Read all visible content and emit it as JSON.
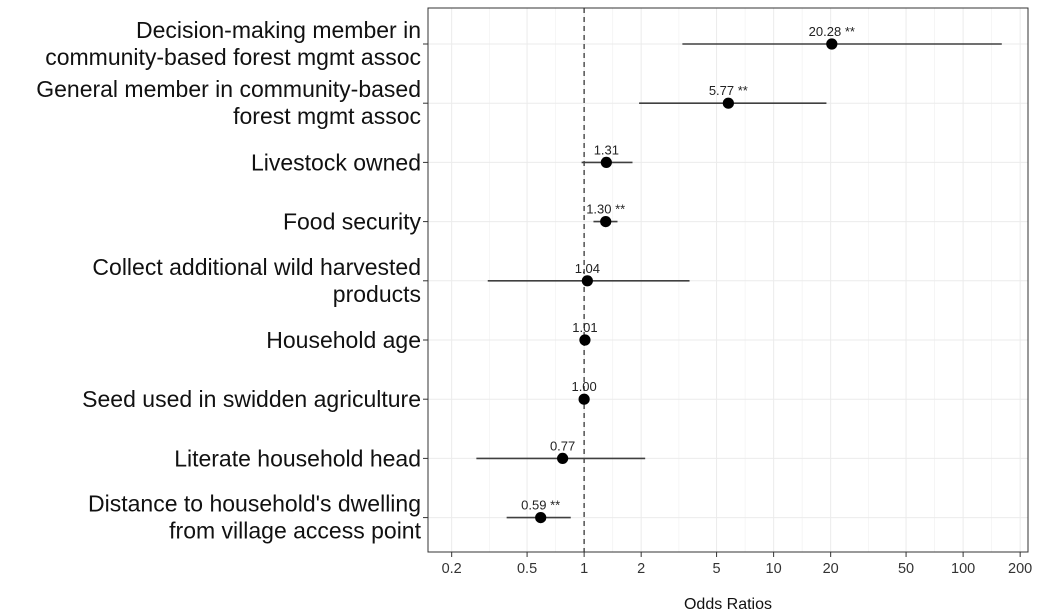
{
  "chart_data": {
    "type": "forest",
    "xlabel": "Odds Ratios",
    "x_scale": "log",
    "xlim": [
      0.15,
      220
    ],
    "x_ticks": [
      0.2,
      0.5,
      1,
      2,
      5,
      10,
      20,
      50,
      100,
      200
    ],
    "x_tick_labels": [
      "0.2",
      "0.5",
      "1",
      "2",
      "5",
      "10",
      "20",
      "50",
      "100",
      "200"
    ],
    "reference_line": 1,
    "grid": true,
    "rows": [
      {
        "label_lines": [
          "Decision-making member in",
          "community-based forest mgmt assoc"
        ],
        "estimate": 20.28,
        "ci_low": 3.3,
        "ci_high": 160,
        "value_label": "20.28 **"
      },
      {
        "label_lines": [
          "General member in community-based",
          "forest mgmt assoc"
        ],
        "estimate": 5.77,
        "ci_low": 1.95,
        "ci_high": 19,
        "value_label": "5.77 **"
      },
      {
        "label_lines": [
          "Livestock owned"
        ],
        "estimate": 1.31,
        "ci_low": 0.97,
        "ci_high": 1.8,
        "value_label": "1.31"
      },
      {
        "label_lines": [
          "Food security"
        ],
        "estimate": 1.3,
        "ci_low": 1.12,
        "ci_high": 1.5,
        "value_label": "1.30 **"
      },
      {
        "label_lines": [
          "Collect additional wild harvested",
          "products"
        ],
        "estimate": 1.04,
        "ci_low": 0.31,
        "ci_high": 3.6,
        "value_label": "1.04"
      },
      {
        "label_lines": [
          "Household age"
        ],
        "estimate": 1.01,
        "ci_low": 0.99,
        "ci_high": 1.03,
        "value_label": "1.01"
      },
      {
        "label_lines": [
          "Seed used in swidden agriculture"
        ],
        "estimate": 1.0,
        "ci_low": 0.99,
        "ci_high": 1.01,
        "value_label": "1.00"
      },
      {
        "label_lines": [
          "Literate household head"
        ],
        "estimate": 0.77,
        "ci_low": 0.27,
        "ci_high": 2.1,
        "value_label": "0.77"
      },
      {
        "label_lines": [
          "Distance to household's dwelling",
          "from village access point"
        ],
        "estimate": 0.59,
        "ci_low": 0.39,
        "ci_high": 0.85,
        "value_label": "0.59 **"
      }
    ],
    "colors": {
      "point": "#000000",
      "ci_line": "#404040",
      "panel_border": "#333333",
      "grid": "#ebebeb",
      "reference_line": "#444444"
    }
  }
}
